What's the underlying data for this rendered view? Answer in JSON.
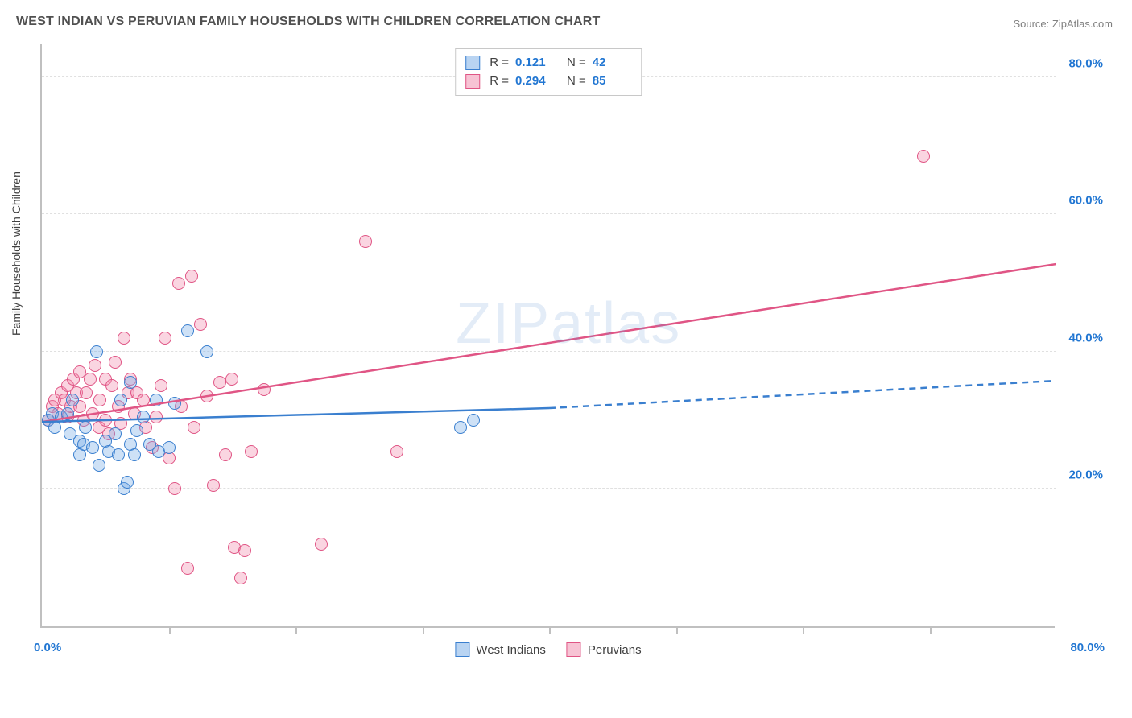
{
  "title": "WEST INDIAN VS PERUVIAN FAMILY HOUSEHOLDS WITH CHILDREN CORRELATION CHART",
  "source_label": "Source: ZipAtlas.com",
  "watermark_text_1": "ZIP",
  "watermark_text_2": "atlas",
  "y_axis_title": "Family Households with Children",
  "chart": {
    "type": "scatter",
    "xlim": [
      0,
      80
    ],
    "ylim": [
      0,
      85
    ],
    "x_label_start": "0.0%",
    "x_label_end": "80.0%",
    "x_tick_positions": [
      10,
      20,
      30,
      40,
      50,
      60,
      70
    ],
    "y_gridlines": [
      20,
      40,
      60,
      80
    ],
    "y_labels": [
      "20.0%",
      "40.0%",
      "60.0%",
      "80.0%"
    ],
    "background_color": "#ffffff",
    "grid_color": "#e0e0e0",
    "axis_color": "#c0c0c0",
    "tick_label_color": "#2176d2"
  },
  "series": {
    "blue": {
      "name": "West Indians",
      "color": "#3a7fcf",
      "fill": "rgba(115,170,230,0.35)",
      "R": "0.121",
      "N": "42",
      "regression": {
        "x1": 0,
        "y1": 30,
        "x2_solid": 40,
        "y2_solid": 32,
        "x2_dashed": 80,
        "y2_dashed": 36,
        "dashed_after_solid": true
      },
      "points": [
        [
          0.5,
          30
        ],
        [
          0.8,
          31
        ],
        [
          1,
          29
        ],
        [
          1.5,
          30.5
        ],
        [
          2,
          31
        ],
        [
          2.2,
          28
        ],
        [
          2.4,
          33
        ],
        [
          3,
          25
        ],
        [
          3,
          27
        ],
        [
          3.3,
          26.5
        ],
        [
          3.4,
          29
        ],
        [
          4,
          26
        ],
        [
          4.3,
          40
        ],
        [
          4.5,
          23.5
        ],
        [
          5,
          27
        ],
        [
          5.3,
          25.5
        ],
        [
          5.8,
          28
        ],
        [
          6,
          25
        ],
        [
          6.2,
          33
        ],
        [
          6.5,
          20
        ],
        [
          6.7,
          21
        ],
        [
          7,
          26.5
        ],
        [
          7,
          35.5
        ],
        [
          7.3,
          25
        ],
        [
          7.5,
          28.5
        ],
        [
          8,
          30.5
        ],
        [
          8.5,
          26.5
        ],
        [
          9,
          33
        ],
        [
          9.2,
          25.5
        ],
        [
          10,
          26
        ],
        [
          10.5,
          32.5
        ],
        [
          11.5,
          43
        ],
        [
          13,
          40
        ],
        [
          33,
          29
        ],
        [
          34,
          30
        ]
      ]
    },
    "pink": {
      "name": "Peruvians",
      "color": "#e05585",
      "fill": "rgba(240,135,170,0.35)",
      "R": "0.294",
      "N": "85",
      "regression": {
        "x1": 0,
        "y1": 30,
        "x2_solid": 80,
        "y2_solid": 53,
        "dashed_after_solid": false
      },
      "points": [
        [
          0.5,
          30
        ],
        [
          0.8,
          32
        ],
        [
          1,
          33
        ],
        [
          1.3,
          31
        ],
        [
          1.5,
          34
        ],
        [
          1.8,
          33
        ],
        [
          2,
          30.5
        ],
        [
          2,
          35
        ],
        [
          2.3,
          32
        ],
        [
          2.5,
          36
        ],
        [
          2.7,
          34
        ],
        [
          3,
          37
        ],
        [
          3,
          32
        ],
        [
          3.3,
          30
        ],
        [
          3.5,
          34
        ],
        [
          3.8,
          36
        ],
        [
          4,
          31
        ],
        [
          4.2,
          38
        ],
        [
          4.5,
          29
        ],
        [
          4.6,
          33
        ],
        [
          5,
          30
        ],
        [
          5,
          36
        ],
        [
          5.3,
          28
        ],
        [
          5.5,
          35
        ],
        [
          5.8,
          38.5
        ],
        [
          6,
          32
        ],
        [
          6.2,
          29.5
        ],
        [
          6.5,
          42
        ],
        [
          6.8,
          34
        ],
        [
          7,
          36
        ],
        [
          7.3,
          31
        ],
        [
          7.5,
          34
        ],
        [
          8,
          33
        ],
        [
          8.2,
          29
        ],
        [
          8.7,
          26
        ],
        [
          9,
          30.5
        ],
        [
          9.4,
          35
        ],
        [
          9.7,
          42
        ],
        [
          10,
          24.5
        ],
        [
          10.5,
          20
        ],
        [
          10.8,
          50
        ],
        [
          11,
          32
        ],
        [
          11.5,
          8.5
        ],
        [
          11.8,
          51
        ],
        [
          12,
          29
        ],
        [
          12.5,
          44
        ],
        [
          13,
          33.5
        ],
        [
          13.5,
          20.5
        ],
        [
          14,
          35.5
        ],
        [
          14.5,
          25
        ],
        [
          15,
          36
        ],
        [
          15.2,
          11.5
        ],
        [
          15.7,
          7
        ],
        [
          16,
          11
        ],
        [
          16.5,
          25.5
        ],
        [
          17.5,
          34.5
        ],
        [
          22,
          12
        ],
        [
          25.5,
          56
        ],
        [
          28,
          25.5
        ],
        [
          69.5,
          68.5
        ]
      ]
    }
  },
  "legend_top": {
    "r_label": "R  =",
    "n_label": "N  ="
  }
}
